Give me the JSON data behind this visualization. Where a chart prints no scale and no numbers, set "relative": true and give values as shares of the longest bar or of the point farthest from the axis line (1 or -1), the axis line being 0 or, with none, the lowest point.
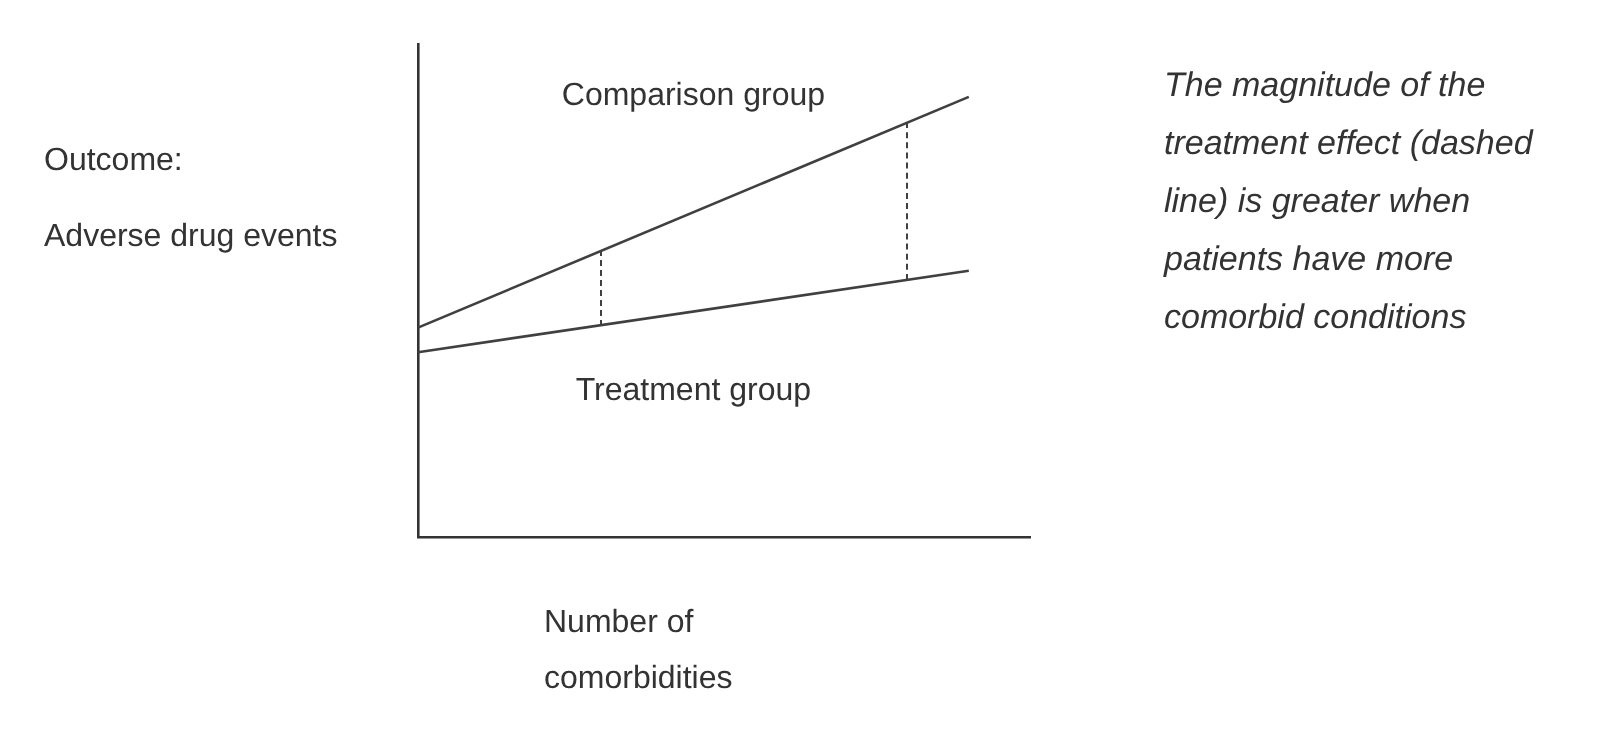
{
  "chart_data": {
    "type": "line",
    "relative": true,
    "marker": "none",
    "xlabel": "Number of\ncomorbidities",
    "ylabel": "Outcome:\nAdverse drug events",
    "categories": [
      null,
      null,
      null,
      null,
      null,
      null,
      null,
      null,
      null,
      null,
      null
    ],
    "series": [
      {
        "name": "Comparison group",
        "color": "#404040",
        "values": [
          0.476,
          null,
          null,
          null,
          null,
          null,
          null,
          null,
          null,
          1,
          null
        ]
      },
      {
        "name": "Treatment group",
        "color": "#404040",
        "values": [
          0.42,
          null,
          null,
          null,
          null,
          null,
          null,
          null,
          null,
          0.605,
          null
        ]
      }
    ],
    "annotations": [
      "The magnitude of the treatment effect (dashed line) is greater when patients have more comorbid conditions"
    ]
  }
}
